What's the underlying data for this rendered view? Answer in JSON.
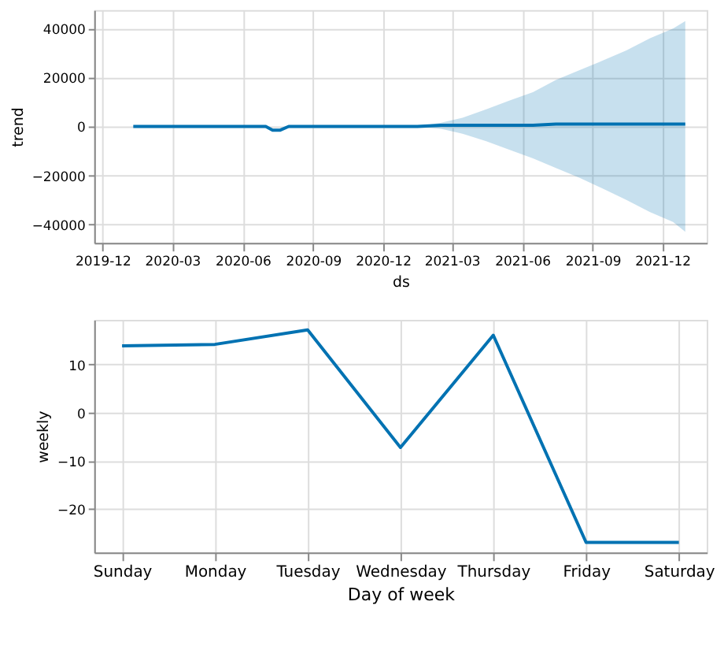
{
  "chart_data": [
    {
      "type": "line",
      "xlabel": "ds",
      "ylabel": "trend",
      "grid": true,
      "xlim": [
        "2019-11-20",
        "2022-01-28"
      ],
      "ylim": [
        -47500,
        47500
      ],
      "xticks": [
        "2019-12",
        "2020-03",
        "2020-06",
        "2020-09",
        "2020-12",
        "2021-03",
        "2021-06",
        "2021-09",
        "2021-12"
      ],
      "yticks": [
        -40000,
        -20000,
        0,
        20000,
        40000
      ],
      "series": [
        {
          "color": "#0072b2",
          "x": [
            "2020-01-10",
            "2020-03-01",
            "2020-05-01",
            "2020-06-20",
            "2020-07-01",
            "2020-07-10",
            "2020-07-20",
            "2020-07-31",
            "2020-08-10",
            "2020-10-01",
            "2020-12-01",
            "2021-01-15",
            "2021-02-15",
            "2021-03-15",
            "2021-04-15",
            "2021-05-15",
            "2021-06-15",
            "2021-07-15",
            "2021-08-15",
            "2021-09-15",
            "2021-10-15",
            "2021-11-15",
            "2021-12-15",
            "2021-12-31"
          ],
          "values": [
            0,
            0,
            0,
            0,
            0,
            -1500,
            -1500,
            0,
            0,
            0,
            0,
            0,
            500,
            500,
            500,
            500,
            500,
            1000,
            1000,
            1000,
            1000,
            1000,
            1000,
            1000
          ],
          "lower": [
            0,
            0,
            0,
            0,
            0,
            -1500,
            -1500,
            0,
            0,
            0,
            0,
            0,
            -1000,
            -3000,
            -6000,
            -9500,
            -13000,
            -17000,
            -21000,
            -25500,
            -30000,
            -35000,
            -39000,
            -43000
          ],
          "upper": [
            0,
            0,
            0,
            0,
            0,
            -1500,
            -1500,
            0,
            0,
            0,
            0,
            0,
            1500,
            3500,
            7000,
            10500,
            14000,
            19000,
            23000,
            27000,
            31000,
            36000,
            40000,
            43000
          ]
        }
      ]
    },
    {
      "type": "line",
      "xlabel": "Day of week",
      "ylabel": "weekly",
      "grid": true,
      "ylim": [
        -29,
        19.3
      ],
      "yticks": [
        -20,
        -10,
        0,
        10
      ],
      "categories": [
        "Sunday",
        "Monday",
        "Tuesday",
        "Wednesday",
        "Thursday",
        "Friday",
        "Saturday"
      ],
      "series": [
        {
          "color": "#0072b2",
          "values": [
            13.9,
            14.2,
            17.2,
            -7.2,
            16.1,
            -26.9,
            -26.9
          ]
        }
      ]
    }
  ]
}
